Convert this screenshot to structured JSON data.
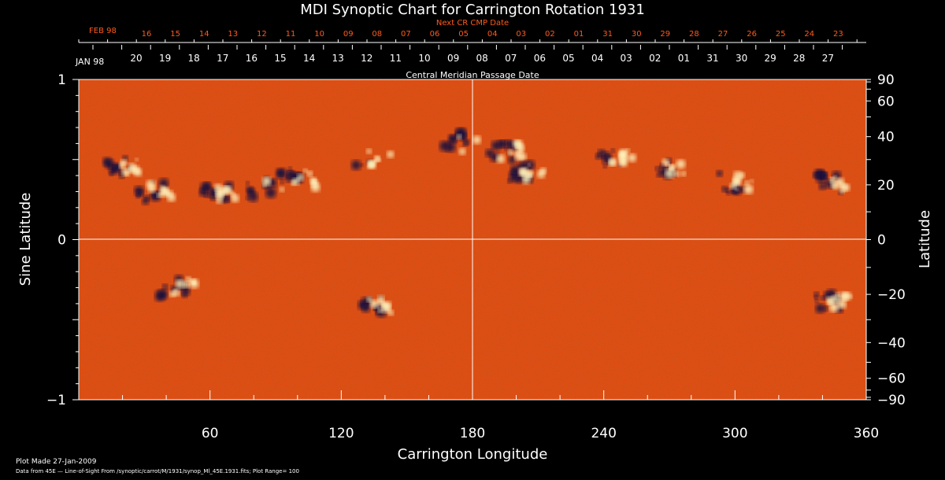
{
  "chart_data": {
    "type": "heatmap",
    "title": "MDI Synoptic Chart for Carrington Rotation 1931",
    "xlabel": "Carrington Longitude",
    "ylabel_left": "Sine Latitude",
    "ylabel_right": "Latitude",
    "xlim": [
      0,
      360
    ],
    "ylim": [
      -1,
      1
    ],
    "x_ticks": [
      60,
      120,
      180,
      240,
      300,
      360
    ],
    "y_ticks_left": [
      {
        "value": 1,
        "label": "1"
      },
      {
        "value": 0,
        "label": "0"
      },
      {
        "value": -1,
        "label": "−1"
      }
    ],
    "y_ticks_right": [
      90,
      60,
      40,
      20,
      0,
      -20,
      -40,
      -60,
      -90
    ],
    "next_cr_label": "Next CR CMP Date",
    "next_cr_month": "FEB 98",
    "next_cr_days": [
      "16",
      "15",
      "14",
      "13",
      "12",
      "11",
      "10",
      "09",
      "08",
      "07",
      "06",
      "05",
      "04",
      "03",
      "02",
      "01",
      "31",
      "30",
      "29",
      "28",
      "27",
      "26",
      "25",
      "24",
      "23"
    ],
    "cmp_month": "JAN 98",
    "cmp_days": [
      "20",
      "19",
      "18",
      "17",
      "16",
      "15",
      "14",
      "13",
      "12",
      "11",
      "10",
      "09",
      "08",
      "07",
      "06",
      "05",
      "04",
      "03",
      "02",
      "01",
      "31",
      "30",
      "29",
      "28",
      "27"
    ],
    "cmp_label": "Central Meridian Passage Date",
    "footer_line1": "Plot Made 27-Jan-2009",
    "footer_line2": "Data from 45E — Line-of-Sight From /synoptic/carrot/M/1931/synop_Ml_45E.1931.fits; Plot Range=  100",
    "colors": {
      "background": "#000000",
      "field_base": "#e04a10",
      "positive": "#fff6c0",
      "negative": "#14103c",
      "next_cr_text": "#ff5a1a",
      "text": "#ffffff"
    },
    "active_regions": [
      {
        "lon": 20,
        "lat": 0.45,
        "polarity": "mixed"
      },
      {
        "lon": 35,
        "lat": 0.3,
        "polarity": "mixed"
      },
      {
        "lon": 65,
        "lat": 0.28,
        "polarity": "mixed"
      },
      {
        "lon": 85,
        "lat": 0.32,
        "polarity": "negative"
      },
      {
        "lon": 100,
        "lat": 0.38,
        "polarity": "mixed"
      },
      {
        "lon": 135,
        "lat": 0.5,
        "polarity": "positive"
      },
      {
        "lon": 175,
        "lat": 0.6,
        "polarity": "negative"
      },
      {
        "lon": 195,
        "lat": 0.55,
        "polarity": "mixed"
      },
      {
        "lon": 205,
        "lat": 0.42,
        "polarity": "mixed"
      },
      {
        "lon": 245,
        "lat": 0.52,
        "polarity": "mixed"
      },
      {
        "lon": 270,
        "lat": 0.45,
        "polarity": "mixed"
      },
      {
        "lon": 300,
        "lat": 0.35,
        "polarity": "mixed"
      },
      {
        "lon": 345,
        "lat": 0.35,
        "polarity": "mixed"
      },
      {
        "lon": 45,
        "lat": -0.3,
        "polarity": "mixed"
      },
      {
        "lon": 135,
        "lat": -0.42,
        "polarity": "mixed"
      },
      {
        "lon": 345,
        "lat": -0.38,
        "polarity": "mixed"
      }
    ]
  }
}
